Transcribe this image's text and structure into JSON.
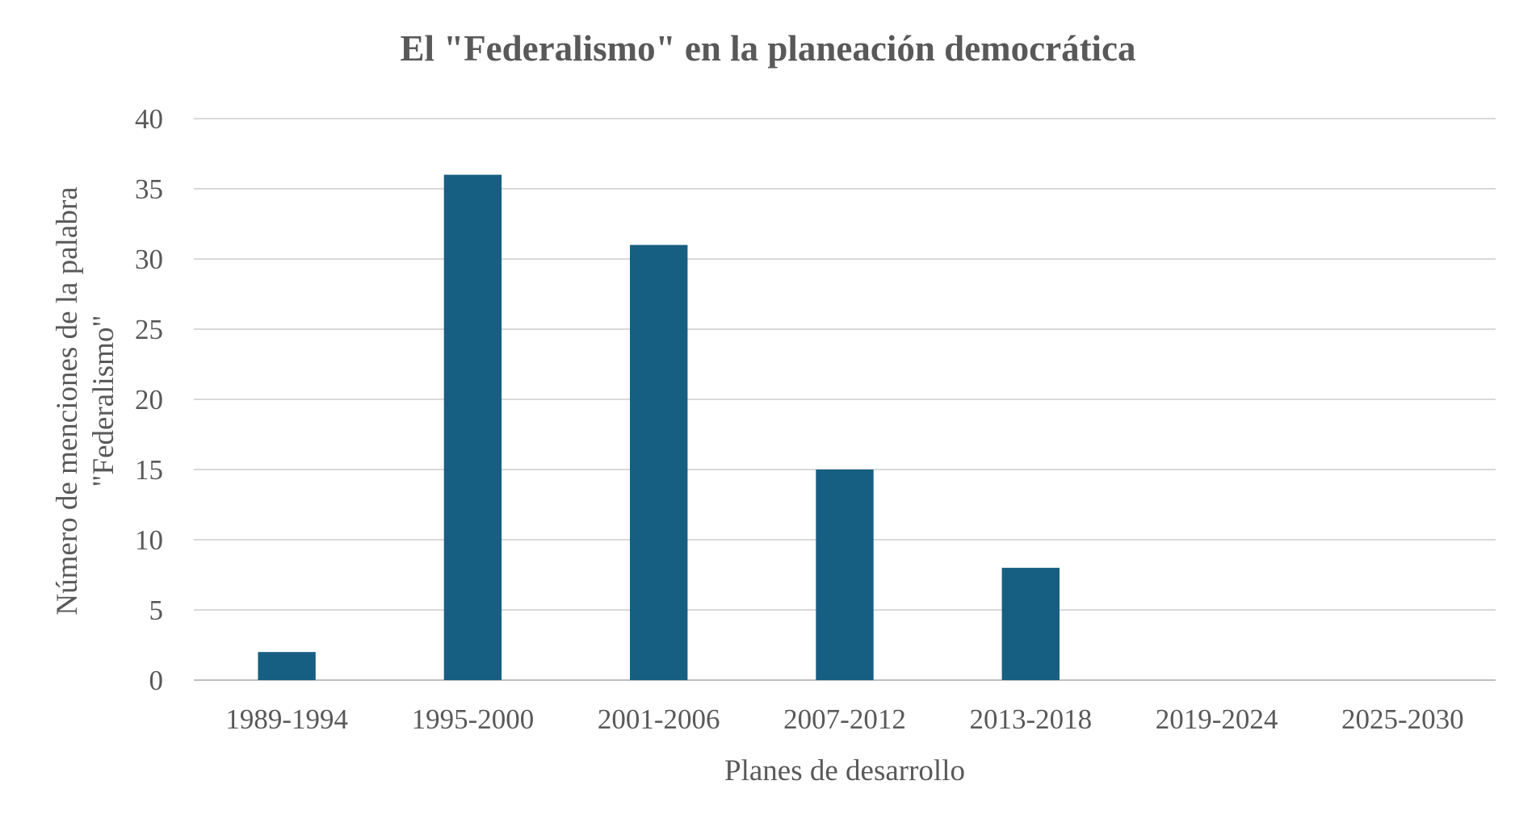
{
  "colors": {
    "bar": "#175f82",
    "text": "#595959",
    "grid": "#d9d9d9",
    "axis": "#bfbfbf",
    "background": "#ffffff"
  },
  "chart_data": {
    "type": "bar",
    "title": "El \"Federalismo\" en la planeación democrática",
    "xlabel": "Planes de desarrollo",
    "ylabel_line1": "Número de menciones de la palabra",
    "ylabel_line2": "\"Federalismo\"",
    "categories": [
      "1989-1994",
      "1995-2000",
      "2001-2006",
      "2007-2012",
      "2013-2018",
      "2019-2024",
      "2025-2030"
    ],
    "values": [
      2,
      36,
      31,
      15,
      8,
      0,
      0
    ],
    "ylim": [
      0,
      40
    ],
    "yticks": [
      0,
      5,
      10,
      15,
      20,
      25,
      30,
      35,
      40
    ],
    "grid": true,
    "legend": "none"
  }
}
